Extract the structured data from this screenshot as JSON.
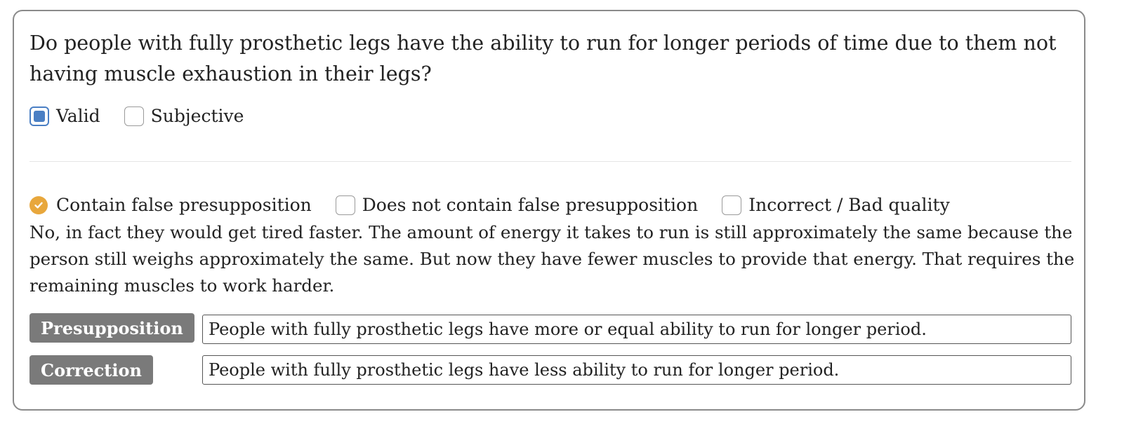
{
  "question": "Do people with fully prosthetic legs have the ability to run for longer periods of time due to them not having muscle exhaustion in their legs?",
  "validity_options": [
    {
      "label": "Valid",
      "checked": true
    },
    {
      "label": "Subjective",
      "checked": false
    }
  ],
  "presupposition_options": [
    {
      "label": "Contain false presupposition",
      "checked": true
    },
    {
      "label": "Does not contain false presupposition",
      "checked": false
    },
    {
      "label": "Incorrect / Bad quality",
      "checked": false
    }
  ],
  "answer": "No, in fact they would get tired faster. The amount of energy it takes to run is still approximately the same because the person still weighs approximately the same. But now they have fewer muscles to provide that energy. That requires the remaining muscles to work harder.",
  "presupposition": {
    "label": "Presupposition",
    "value": "People with fully prosthetic legs have more or equal ability to run for longer period."
  },
  "correction": {
    "label": "Correction",
    "value": "People with fully prosthetic legs have less ability to run for longer period."
  },
  "colors": {
    "checkbox_checked": "#4a7fc4",
    "radio_checked": "#e8a73c",
    "tag_background": "#7a7a7a"
  }
}
